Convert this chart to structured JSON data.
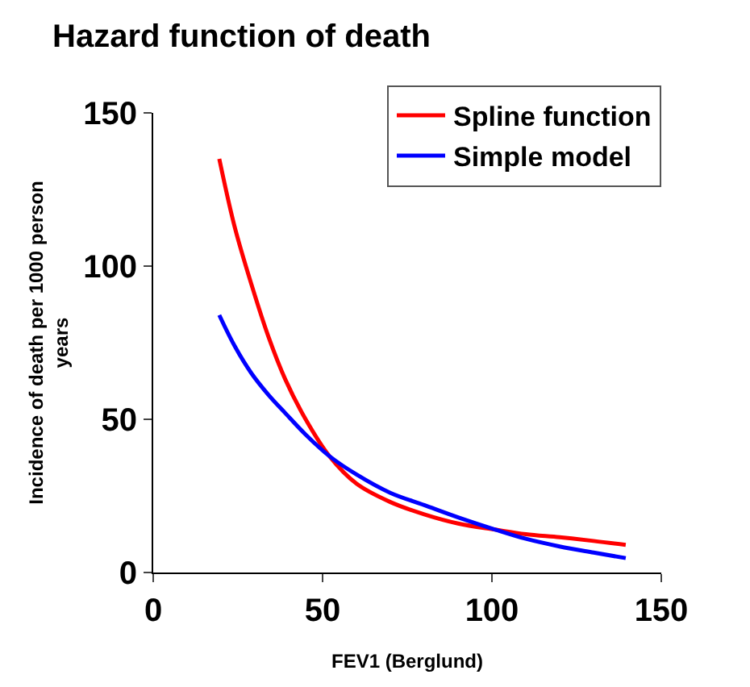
{
  "chart_data": {
    "type": "line",
    "title": "Hazard function of death",
    "xlabel": "FEV1 (Berglund)",
    "ylabel": "Incidence of death per 1000 person years",
    "xlim": [
      0,
      150
    ],
    "xticks": [
      0,
      50,
      100,
      150
    ],
    "ylim": [
      0,
      150
    ],
    "yticks": [
      0,
      50,
      100,
      150
    ],
    "legend": "top right",
    "marker": "none",
    "line_style": "solid",
    "series": [
      {
        "name": "Spline function",
        "color": "#ff0000",
        "x": [
          19.5,
          24,
          29,
          34,
          39,
          45,
          52,
          60,
          70,
          80,
          90,
          101,
          110,
          120,
          130,
          139.5
        ],
        "values": [
          135,
          113,
          94,
          77,
          63,
          50,
          38,
          29,
          23,
          19,
          16,
          14,
          12.5,
          11.5,
          10.3,
          9
        ]
      },
      {
        "name": "Simple model",
        "color": "#0000ff",
        "x": [
          19.5,
          24,
          29,
          34,
          39,
          45,
          52,
          60,
          70,
          80,
          90,
          101,
          110,
          120,
          130,
          139.5
        ],
        "values": [
          84,
          74,
          65,
          58,
          52,
          45,
          38,
          32,
          26,
          22,
          18,
          14,
          11,
          8.5,
          6.5,
          4.7
        ]
      }
    ]
  }
}
